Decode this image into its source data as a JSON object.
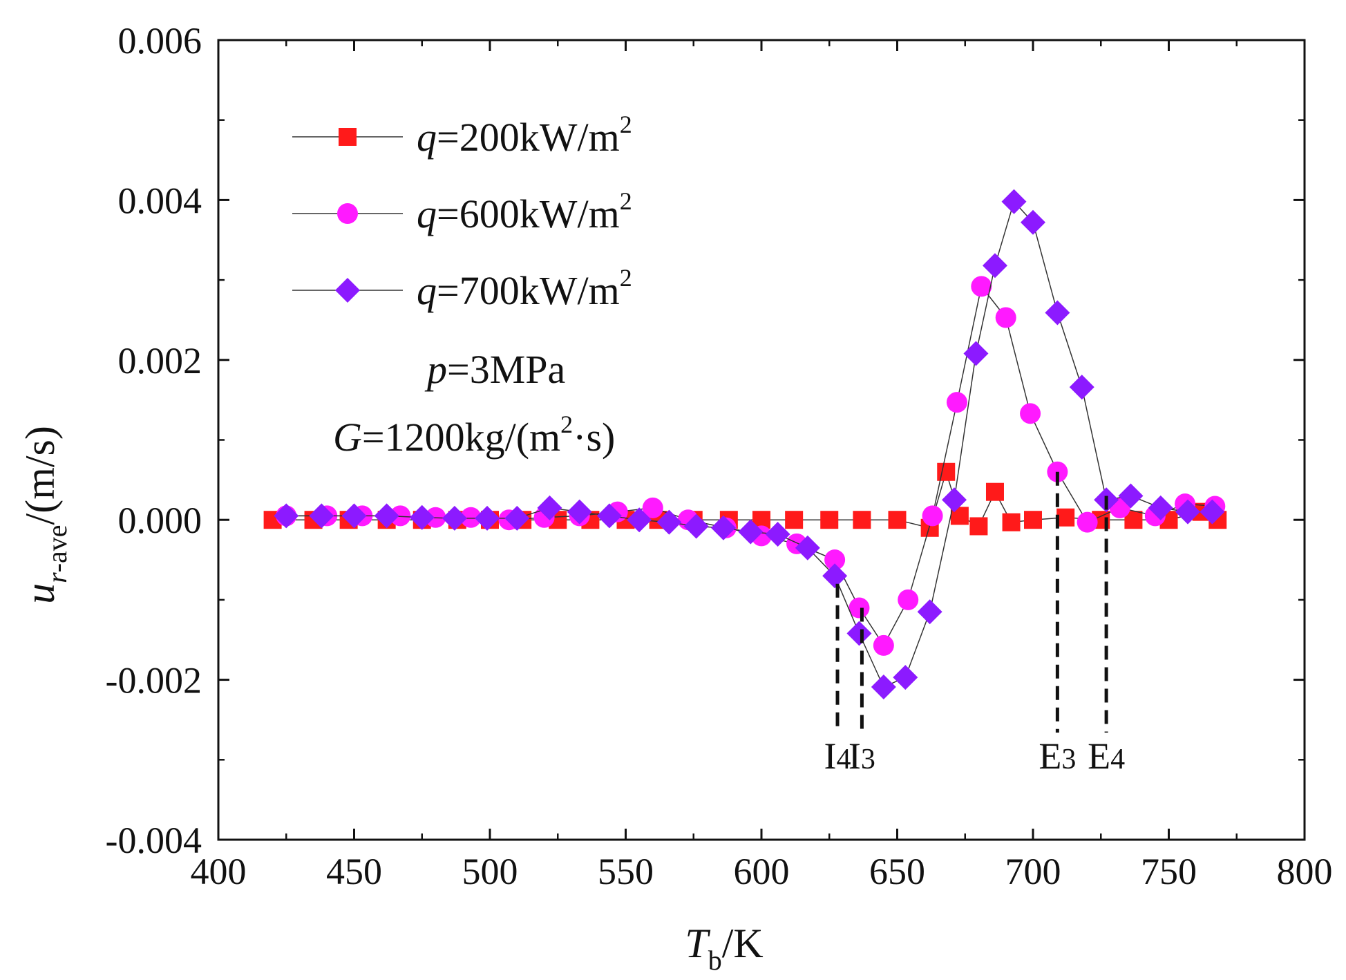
{
  "chart_data": {
    "type": "line",
    "title": "",
    "xlabel": {
      "main": "T",
      "sub": "b",
      "unit": "/K"
    },
    "ylabel": {
      "main": "u",
      "sub_italic": "r",
      "sub_rest": "-ave",
      "unit": "/(m/s)"
    },
    "xlim": [
      400,
      800
    ],
    "ylim": [
      -0.004,
      0.006
    ],
    "xticks": [
      400,
      450,
      500,
      550,
      600,
      650,
      700,
      750,
      800
    ],
    "xtick_labels": [
      "400",
      "450",
      "500",
      "550",
      "600",
      "650",
      "700",
      "750",
      "800"
    ],
    "yticks": [
      -0.004,
      -0.002,
      0.0,
      0.002,
      0.004,
      0.006
    ],
    "ytick_labels": [
      "-0.004",
      "-0.002",
      "0.000",
      "0.002",
      "0.004",
      "0.006"
    ],
    "grid": false,
    "legend_position": "top-left",
    "series": [
      {
        "name": "q=200kW/m2",
        "label_var": "q",
        "label_value": "=200kW/m",
        "label_sup": "2",
        "marker": "square",
        "color": "#ff1a1a",
        "x": [
          420,
          435,
          448,
          462,
          475,
          488,
          500,
          512,
          525,
          537,
          550,
          562,
          575,
          588,
          600,
          612,
          625,
          637,
          650,
          662,
          668,
          673,
          680,
          686,
          692,
          700,
          712,
          725,
          737,
          750,
          762,
          768
        ],
        "y": [
          0.0,
          0.0,
          0.0,
          0.0,
          0.0,
          0.0,
          0.0,
          0.0,
          0.0,
          0.0,
          0.0,
          0.0,
          0.0,
          0.0,
          0.0,
          0.0,
          0.0,
          0.0,
          0.0,
          -0.0001,
          0.0006,
          5e-05,
          -8e-05,
          0.00035,
          -3e-05,
          0.0,
          3e-05,
          0.0,
          0.0,
          0.0,
          0.0001,
          0.0
        ]
      },
      {
        "name": "q=600kW/m2",
        "label_var": "q",
        "label_value": "=600kW/m",
        "label_sup": "2",
        "marker": "circle",
        "color": "#ff1aff",
        "x": [
          425,
          440,
          453,
          467,
          480,
          493,
          507,
          520,
          533,
          547,
          560,
          573,
          587,
          600,
          613,
          627,
          636,
          645,
          654,
          663,
          672,
          681,
          690,
          699,
          709,
          720,
          732,
          745,
          756,
          767
        ],
        "y": [
          5e-05,
          5e-05,
          5e-05,
          5e-05,
          3e-05,
          3e-05,
          0.0,
          3e-05,
          5e-05,
          0.0001,
          0.00015,
          0.0,
          -0.0001,
          -0.0002,
          -0.0003,
          -0.0005,
          -0.0011,
          -0.00157,
          -0.001,
          5e-05,
          0.00147,
          0.00292,
          0.00253,
          0.00133,
          0.0006,
          -3e-05,
          0.00015,
          5e-05,
          0.0002,
          0.00017
        ]
      },
      {
        "name": "q=700kW/m2",
        "label_var": "q",
        "label_value": "=700kW/m",
        "label_sup": "2",
        "marker": "diamond",
        "color": "#8c1aff",
        "x": [
          425,
          438,
          450,
          462,
          475,
          487,
          499,
          510,
          522,
          533,
          544,
          555,
          566,
          576,
          586,
          596,
          606,
          617,
          627,
          636,
          645,
          653,
          662,
          671,
          679,
          686,
          693,
          700,
          709,
          718,
          727,
          736,
          747,
          757,
          766
        ],
        "y": [
          5e-05,
          5e-05,
          5e-05,
          5e-05,
          3e-05,
          2e-05,
          2e-05,
          2e-05,
          0.00015,
          0.0001,
          5e-05,
          0.0,
          -3e-05,
          -8e-05,
          -0.0001,
          -0.00015,
          -0.00018,
          -0.00035,
          -0.0007,
          -0.00142,
          -0.00209,
          -0.00197,
          -0.00115,
          0.00025,
          0.00208,
          0.00318,
          0.00398,
          0.00372,
          0.00259,
          0.00166,
          0.00025,
          0.0003,
          0.00015,
          0.0001,
          0.0001
        ]
      }
    ],
    "annotations": {
      "pressure": {
        "var": "p",
        "value": "=3MPa"
      },
      "mass_flux": {
        "var": "G",
        "value_pre": "=1200kg/(m",
        "sup": "2",
        "value_post": "·s)"
      }
    },
    "markers": [
      {
        "main": "I",
        "sub": "4",
        "x": 628,
        "y_top": -0.0008
      },
      {
        "main": "I",
        "sub": "3",
        "x": 637,
        "y_top": -0.0011
      },
      {
        "main": "E",
        "sub": "3",
        "x": 709,
        "y_top": 0.0006
      },
      {
        "main": "E",
        "sub": "4",
        "x": 727,
        "y_top": 0.0003
      }
    ]
  }
}
